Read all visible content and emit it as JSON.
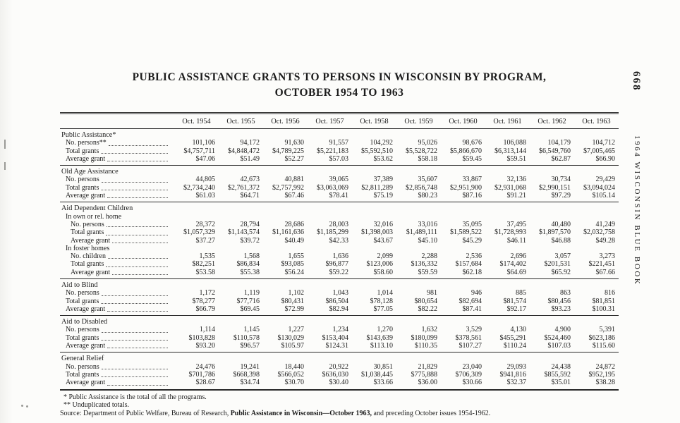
{
  "page": {
    "page_number": "668",
    "side_title": "1964 WISCONSIN BLUE BOOK",
    "title_line1": "PUBLIC ASSISTANCE GRANTS TO PERSONS IN WISCONSIN BY PROGRAM,",
    "title_line2": "OCTOBER 1954 TO 1963"
  },
  "table": {
    "columns": [
      "Oct. 1954",
      "Oct. 1955",
      "Oct. 1956",
      "Oct. 1957",
      "Oct. 1958",
      "Oct. 1959",
      "Oct. 1960",
      "Oct. 1961",
      "Oct. 1962",
      "Oct. 1963"
    ],
    "sections": [
      {
        "title": "Public Assistance*",
        "rows": [
          {
            "label": "No. persons**",
            "indent": 1,
            "values": [
              "101,106",
              "94,172",
              "91,630",
              "91,557",
              "104,292",
              "95,026",
              "98,676",
              "106,088",
              "104,179",
              "104,712"
            ]
          },
          {
            "label": "Total grants",
            "indent": 1,
            "values": [
              "$4,757,711",
              "$4,848,472",
              "$4,789,225",
              "$5,221,183",
              "$5,592,510",
              "$5,528,722",
              "$5,866,670",
              "$6,313,144",
              "$6,549,760",
              "$7,005,465"
            ]
          },
          {
            "label": "Average grant",
            "indent": 1,
            "values": [
              "$47.06",
              "$51.49",
              "$52.27",
              "$57.03",
              "$53.62",
              "$58.18",
              "$59.45",
              "$59.51",
              "$62.87",
              "$66.90"
            ]
          }
        ]
      },
      {
        "title": "Old Age Assistance",
        "rows": [
          {
            "label": "No. persons",
            "indent": 1,
            "values": [
              "44,805",
              "42,673",
              "40,881",
              "39,065",
              "37,389",
              "35,607",
              "33,867",
              "32,136",
              "30,734",
              "29,429"
            ]
          },
          {
            "label": "Total grants",
            "indent": 1,
            "values": [
              "$2,734,240",
              "$2,761,372",
              "$2,757,992",
              "$3,063,069",
              "$2,811,289",
              "$2,856,748",
              "$2,951,900",
              "$2,931,068",
              "$2,990,151",
              "$3,094,024"
            ]
          },
          {
            "label": "Average grant",
            "indent": 1,
            "values": [
              "$61.03",
              "$64.71",
              "$67.46",
              "$78.41",
              "$75.19",
              "$80.23",
              "$87.16",
              "$91.21",
              "$97.29",
              "$105.14"
            ]
          }
        ]
      },
      {
        "title": "Aid Dependent Children",
        "rows": [
          {
            "label": "In own or rel. home",
            "indent": 1
          },
          {
            "label": "No. persons",
            "indent": 2,
            "values": [
              "28,372",
              "28,794",
              "28,686",
              "28,003",
              "32,016",
              "33,016",
              "35,095",
              "37,495",
              "40,480",
              "41,249"
            ]
          },
          {
            "label": "Total grants",
            "indent": 2,
            "values": [
              "$1,057,329",
              "$1,143,574",
              "$1,161,636",
              "$1,185,299",
              "$1,398,003",
              "$1,489,111",
              "$1,589,522",
              "$1,728,993",
              "$1,897,570",
              "$2,032,758"
            ]
          },
          {
            "label": "Average grant",
            "indent": 2,
            "values": [
              "$37.27",
              "$39.72",
              "$40.49",
              "$42.33",
              "$43.67",
              "$45.10",
              "$45.29",
              "$46.11",
              "$46.88",
              "$49.28"
            ]
          },
          {
            "label": "In foster homes",
            "indent": 1
          },
          {
            "label": "No. children",
            "indent": 2,
            "values": [
              "1,535",
              "1,568",
              "1,655",
              "1,636",
              "2,099",
              "2,288",
              "2,536",
              "2,696",
              "3,057",
              "3,273"
            ]
          },
          {
            "label": "Total grants",
            "indent": 2,
            "values": [
              "$82,251",
              "$86,834",
              "$93,085",
              "$96,877",
              "$123,006",
              "$136,332",
              "$157,684",
              "$174,402",
              "$201,531",
              "$221,451"
            ]
          },
          {
            "label": "Average grant",
            "indent": 2,
            "values": [
              "$53.58",
              "$55.38",
              "$56.24",
              "$59.22",
              "$58.60",
              "$59.59",
              "$62.18",
              "$64.69",
              "$65.92",
              "$67.66"
            ]
          }
        ]
      },
      {
        "title": "Aid to Blind",
        "rows": [
          {
            "label": "No. persons",
            "indent": 1,
            "values": [
              "1,172",
              "1,119",
              "1,102",
              "1,043",
              "1,014",
              "981",
              "946",
              "885",
              "863",
              "816"
            ]
          },
          {
            "label": "Total grants",
            "indent": 1,
            "values": [
              "$78,277",
              "$77,716",
              "$80,431",
              "$86,504",
              "$78,128",
              "$80,654",
              "$82,694",
              "$81,574",
              "$80,456",
              "$81,851"
            ]
          },
          {
            "label": "Average grant",
            "indent": 1,
            "values": [
              "$66.79",
              "$69.45",
              "$72.99",
              "$82.94",
              "$77.05",
              "$82.22",
              "$87.41",
              "$92.17",
              "$93.23",
              "$100.31"
            ]
          }
        ]
      },
      {
        "title": "Aid to Disabled",
        "rows": [
          {
            "label": "No. persons",
            "indent": 1,
            "values": [
              "1,114",
              "1,145",
              "1,227",
              "1,234",
              "1,270",
              "1,632",
              "3,529",
              "4,130",
              "4,900",
              "5,391"
            ]
          },
          {
            "label": "Total grants",
            "indent": 1,
            "values": [
              "$103,828",
              "$110,578",
              "$130,029",
              "$153,404",
              "$143,639",
              "$180,099",
              "$378,561",
              "$455,291",
              "$524,460",
              "$623,186"
            ]
          },
          {
            "label": "Average grant",
            "indent": 1,
            "values": [
              "$93.20",
              "$96.57",
              "$105.97",
              "$124.31",
              "$113.10",
              "$110.35",
              "$107.27",
              "$110.24",
              "$107.03",
              "$115.60"
            ]
          }
        ]
      },
      {
        "title": "General Relief",
        "rows": [
          {
            "label": "No. persons",
            "indent": 1,
            "values": [
              "24,476",
              "19,241",
              "18,440",
              "20,922",
              "30,851",
              "21,829",
              "23,040",
              "29,093",
              "24,438",
              "24,872"
            ]
          },
          {
            "label": "Total grants",
            "indent": 1,
            "values": [
              "$701,786",
              "$668,398",
              "$566,052",
              "$636,030",
              "$1,038,445",
              "$775,888",
              "$706,309",
              "$941,816",
              "$855,592",
              "$952,195"
            ]
          },
          {
            "label": "Average grant",
            "indent": 1,
            "values": [
              "$28.67",
              "$34.74",
              "$30.70",
              "$30.40",
              "$33.66",
              "$36.00",
              "$30.66",
              "$32.37",
              "$35.01",
              "$38.28"
            ]
          }
        ]
      }
    ]
  },
  "footnotes": {
    "note1": "* Public Assistance is the total of all the programs.",
    "note2": "** Unduplicated totals.",
    "source_prefix": "Source: Department of Public Welfare, Bureau of Research, ",
    "source_emphasis": "Public Assistance in Wisconsin—October 1963,",
    "source_suffix": " and preceding October issues 1954-1962."
  }
}
